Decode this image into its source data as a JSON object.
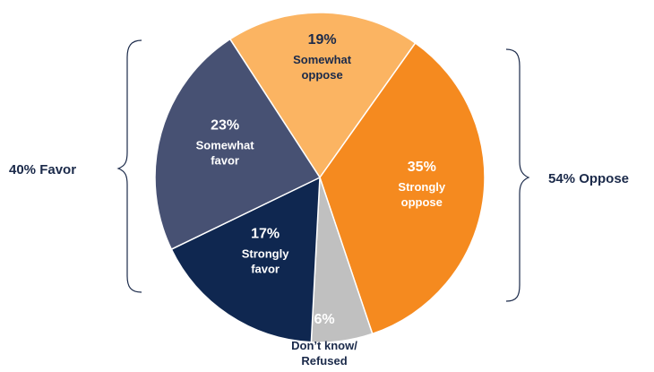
{
  "chart_data": {
    "type": "pie",
    "categories": [
      "Somewhat oppose",
      "Strongly oppose",
      "Don't know/ Refused",
      "Strongly favor",
      "Somewhat favor"
    ],
    "values": [
      19,
      35,
      6,
      17,
      23
    ],
    "value_labels": [
      "19%",
      "35%",
      "6%",
      "17%",
      "23%"
    ],
    "label_lines": [
      [
        "Somewhat",
        "oppose"
      ],
      [
        "Strongly",
        "oppose"
      ],
      [
        "Don’t know/",
        "Refused"
      ],
      [
        "Strongly",
        "favor"
      ],
      [
        "Somewhat",
        "favor"
      ]
    ],
    "colors": [
      "#fbb462",
      "#f58a1f",
      "#c0c0c0",
      "#0f2750",
      "#475173"
    ],
    "label_colors": [
      "#1b2a4a",
      "#ffffff",
      "#ffffff",
      "#ffffff",
      "#ffffff"
    ],
    "label_placement": [
      "inside",
      "inside",
      "outside",
      "inside",
      "inside"
    ],
    "groups": [
      {
        "label": "40% Favor",
        "side": "left"
      },
      {
        "label": "54% Oppose",
        "side": "right"
      }
    ]
  }
}
